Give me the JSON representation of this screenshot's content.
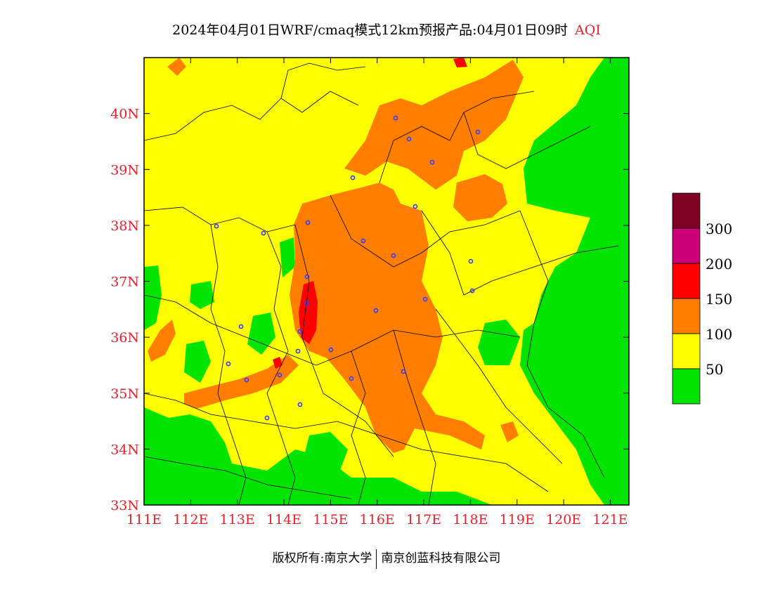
{
  "title": {
    "main": "2024年04月01日WRF/cmaq模式12km预报产品:04月01日09时",
    "variable": "AQI"
  },
  "map": {
    "lon_range": [
      111,
      121.4
    ],
    "lat_range": [
      33,
      41
    ],
    "lon_ticks": [
      "111E",
      "112E",
      "113E",
      "114E",
      "115E",
      "116E",
      "117E",
      "118E",
      "119E",
      "120E",
      "121E"
    ],
    "lat_ticks": [
      "33N",
      "34N",
      "35N",
      "36N",
      "37N",
      "38N",
      "39N",
      "40N"
    ],
    "colors": {
      "good": "#00e400",
      "moderate": "#ffff00",
      "usg": "#ff7e00",
      "unhealthy": "#ff0000",
      "very_unhealthy": "#cc0077",
      "hazardous": "#7e0023",
      "axis_label": "#e8202a",
      "city_marker": "#3a3aff"
    }
  },
  "legend": {
    "labels": [
      "50",
      "100",
      "150",
      "200",
      "300"
    ]
  },
  "footer": {
    "copyright": "版权所有:南京大学",
    "company": "南京创蓝科技有限公司"
  }
}
